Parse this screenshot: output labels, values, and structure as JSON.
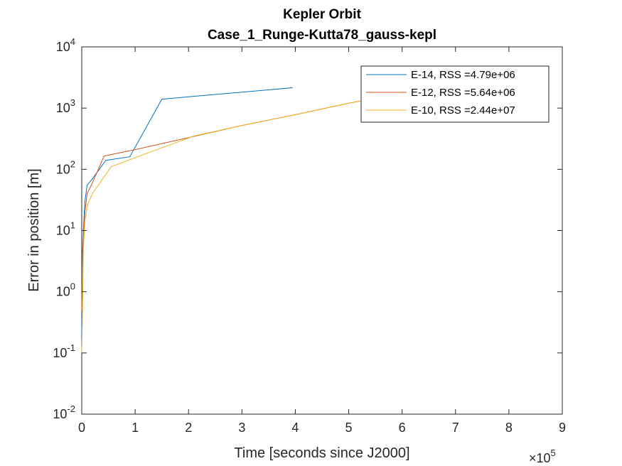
{
  "chart_data": {
    "type": "line",
    "title": [
      "Kepler Orbit",
      "Case_1_Runge-Kutta78_gauss-kepl"
    ],
    "xlabel": "Time [seconds since J2000]",
    "ylabel": "Error in position [m]",
    "x_exponent_label": "×10",
    "x_exponent": "5",
    "xlim": [
      0,
      900000
    ],
    "ylim": [
      0.01,
      10000
    ],
    "yscale": "log",
    "grid": false,
    "legend_position": "top-right",
    "x_ticks": [
      {
        "value": 0,
        "label": "0"
      },
      {
        "value": 100000,
        "label": "1"
      },
      {
        "value": 200000,
        "label": "2"
      },
      {
        "value": 300000,
        "label": "3"
      },
      {
        "value": 400000,
        "label": "4"
      },
      {
        "value": 500000,
        "label": "5"
      },
      {
        "value": 600000,
        "label": "6"
      },
      {
        "value": 700000,
        "label": "7"
      },
      {
        "value": 800000,
        "label": "8"
      },
      {
        "value": 900000,
        "label": "9"
      }
    ],
    "y_ticks": [
      {
        "value": 0.01,
        "base": "10",
        "exp": "-2"
      },
      {
        "value": 0.1,
        "base": "10",
        "exp": "-1"
      },
      {
        "value": 1,
        "base": "10",
        "exp": "0"
      },
      {
        "value": 10,
        "base": "10",
        "exp": "1"
      },
      {
        "value": 100,
        "base": "10",
        "exp": "2"
      },
      {
        "value": 1000,
        "base": "10",
        "exp": "3"
      },
      {
        "value": 10000,
        "base": "10",
        "exp": "4"
      }
    ],
    "series": [
      {
        "name": "E-14, RSS =4.79e+06",
        "color": "#0072BD",
        "x": [
          0,
          1000,
          3000,
          6000,
          10000,
          20000,
          45000,
          90000,
          150000,
          395000
        ],
        "y": [
          0.2,
          3,
          10,
          30,
          55,
          70,
          140,
          160,
          1400,
          2150
        ]
      },
      {
        "name": "E-12, RSS =5.64e+06",
        "color": "#D95319",
        "x": [
          0,
          1000,
          3000,
          6000,
          10000,
          20000,
          42000,
          100000,
          200000,
          300000,
          400000,
          500000,
          560000
        ],
        "y": [
          0.5,
          4,
          8,
          20,
          40,
          60,
          165,
          210,
          330,
          520,
          780,
          1200,
          1500
        ]
      },
      {
        "name": "E-10, RSS =2.44e+07",
        "color": "#EDB120",
        "x": [
          0,
          1000,
          3000,
          6000,
          12000,
          20000,
          55000,
          120000,
          210000,
          300000,
          400000,
          500000,
          560000
        ],
        "y": [
          0.1,
          0.3,
          5,
          15,
          28,
          40,
          110,
          180,
          350,
          520,
          780,
          1200,
          1500
        ]
      }
    ]
  }
}
